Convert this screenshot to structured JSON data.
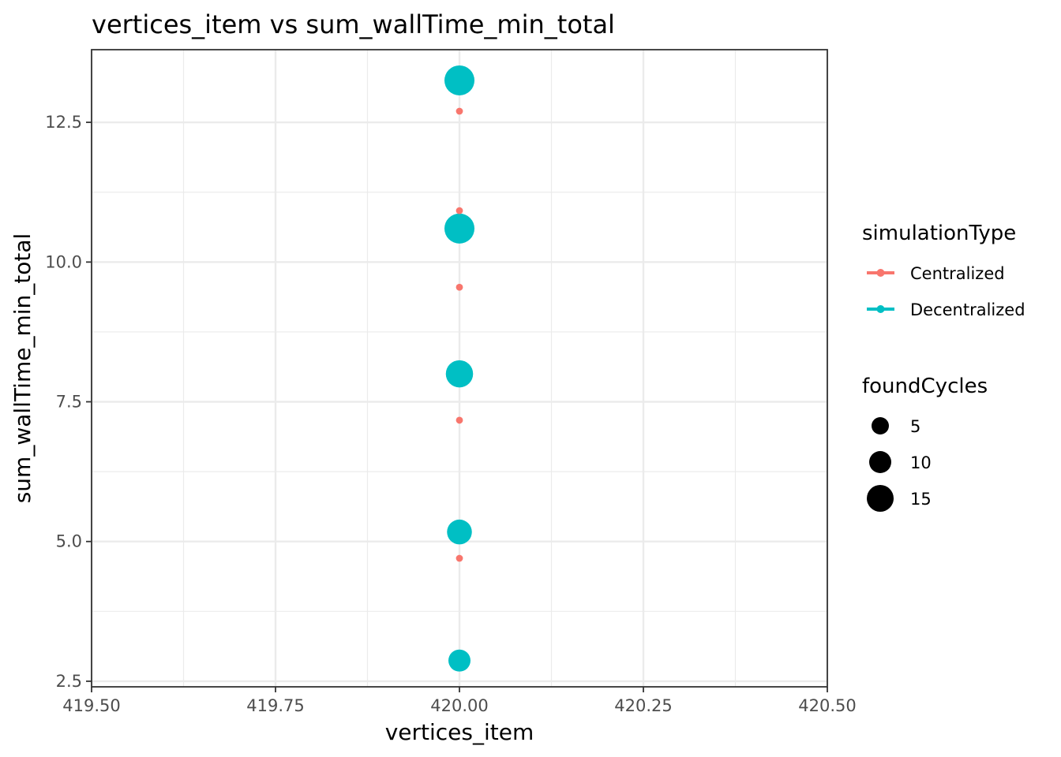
{
  "chart_data": {
    "type": "scatter",
    "title": "vertices_item  vs  sum_wallTime_min_total",
    "xlabel": "vertices_item",
    "ylabel": "sum_wallTime_min_total",
    "xlim": [
      419.5,
      420.5
    ],
    "ylim": [
      2.4,
      13.8
    ],
    "x_ticks": [
      "419.50",
      "419.75",
      "420.00",
      "420.25",
      "420.50"
    ],
    "x_tick_values": [
      419.5,
      419.75,
      420.0,
      420.25,
      420.5
    ],
    "y_ticks": [
      "2.5",
      "5.0",
      "7.5",
      "10.0",
      "12.5"
    ],
    "y_tick_values": [
      2.5,
      5.0,
      7.5,
      10.0,
      12.5
    ],
    "grid": true,
    "legend_placement": "right",
    "color_legend": {
      "title": "simulationType",
      "entries": [
        {
          "label": "Centralized",
          "color": "#f8766d"
        },
        {
          "label": "Decentralized",
          "color": "#00bfc4"
        }
      ]
    },
    "size_legend": {
      "title": "foundCycles",
      "entries": [
        {
          "label": "5",
          "value": 5
        },
        {
          "label": "10",
          "value": 10
        },
        {
          "label": "15",
          "value": 15
        }
      ]
    },
    "series": [
      {
        "name": "Centralized",
        "color": "#f8766d",
        "points": [
          {
            "x": 420.0,
            "y": 12.7,
            "size": 1
          },
          {
            "x": 420.0,
            "y": 10.92,
            "size": 1
          },
          {
            "x": 420.0,
            "y": 9.55,
            "size": 1
          },
          {
            "x": 420.0,
            "y": 7.17,
            "size": 1
          },
          {
            "x": 420.0,
            "y": 4.7,
            "size": 1
          }
        ]
      },
      {
        "name": "Decentralized",
        "color": "#00bfc4",
        "points": [
          {
            "x": 420.0,
            "y": 13.25,
            "size": 17
          },
          {
            "x": 420.0,
            "y": 10.6,
            "size": 17
          },
          {
            "x": 420.0,
            "y": 8.0,
            "size": 13
          },
          {
            "x": 420.0,
            "y": 5.17,
            "size": 10
          },
          {
            "x": 420.0,
            "y": 2.87,
            "size": 7
          }
        ]
      }
    ]
  }
}
